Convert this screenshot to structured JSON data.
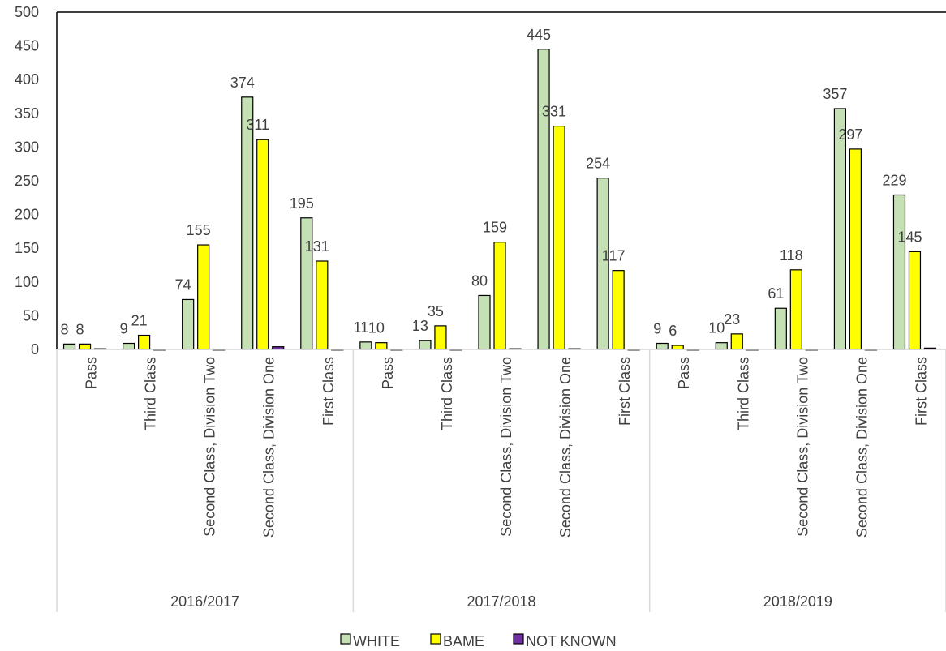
{
  "chart_data": {
    "type": "bar",
    "groups": [
      {
        "label": "2016/2017",
        "categories": [
          "Pass",
          "Third Class",
          "Second Class, Division Two",
          "Second Class, Division One",
          "First Class"
        ]
      },
      {
        "label": "2017/2018",
        "categories": [
          "Pass",
          "Third Class",
          "Second Class, Division Two",
          "Second Class, Division One",
          "First Class"
        ]
      },
      {
        "label": "2018/2019",
        "categories": [
          "Pass",
          "Third Class",
          "Second Class, Division Two",
          "Second Class, Division One",
          "First Class"
        ]
      }
    ],
    "series": [
      {
        "name": "WHITE",
        "color": "#C5E0B4",
        "values": [
          8,
          9,
          74,
          374,
          195,
          11,
          13,
          80,
          445,
          254,
          9,
          10,
          61,
          357,
          229
        ],
        "labels_shown": true
      },
      {
        "name": "BAME",
        "color": "#FFFF00",
        "values": [
          8,
          21,
          155,
          311,
          131,
          10,
          35,
          159,
          331,
          117,
          6,
          23,
          118,
          297,
          145
        ],
        "labels_shown": true
      },
      {
        "name": "NOT KNOWN",
        "color": "#7030A0",
        "values": [
          1,
          0,
          0,
          4,
          0,
          0,
          0,
          1,
          1,
          0,
          0,
          0,
          0,
          0,
          2
        ],
        "labels_shown": false
      }
    ],
    "y_ticks": [
      "0",
      "50",
      "100",
      "150",
      "200",
      "250",
      "300",
      "350",
      "400",
      "450",
      "500"
    ],
    "ylim": [
      0,
      500
    ],
    "grid": false,
    "legend_position": "bottom",
    "title": "",
    "xlabel": "",
    "ylabel": ""
  }
}
